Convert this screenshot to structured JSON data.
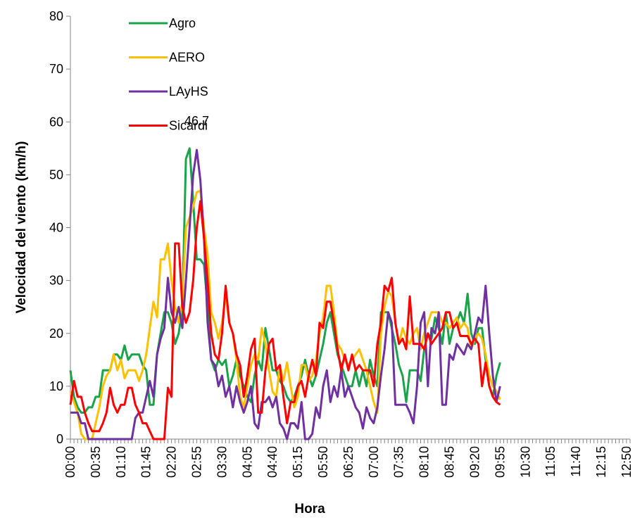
{
  "chart_data": {
    "type": "line",
    "x_label": "Hora",
    "y_label": "Velocidad del viento (km/h)",
    "ylim": [
      0,
      80
    ],
    "yticks": [
      0,
      10,
      20,
      30,
      40,
      50,
      60,
      70,
      80
    ],
    "legend": "top-left",
    "categories": [
      "00:00",
      null,
      null,
      null,
      null,
      null,
      null,
      "00:35",
      null,
      null,
      null,
      null,
      null,
      null,
      "01:10",
      null,
      null,
      null,
      null,
      null,
      null,
      "01:45",
      null,
      null,
      null,
      null,
      null,
      null,
      "02:20",
      null,
      null,
      null,
      null,
      null,
      null,
      "02:55",
      null,
      null,
      null,
      null,
      null,
      null,
      "03:30",
      null,
      null,
      null,
      null,
      null,
      null,
      "04:05",
      null,
      null,
      null,
      null,
      null,
      null,
      "04:40",
      null,
      null,
      null,
      null,
      null,
      null,
      "05:15",
      null,
      null,
      null,
      null,
      null,
      null,
      "05:50",
      null,
      null,
      null,
      null,
      null,
      null,
      "06:25",
      null,
      null,
      null,
      null,
      null,
      null,
      "07:00",
      null,
      null,
      null,
      null,
      null,
      null,
      "07:35",
      null,
      null,
      null,
      null,
      null,
      null,
      "08:10",
      null,
      null,
      null,
      null,
      null,
      null,
      "08:45",
      null,
      null,
      null,
      null,
      null,
      null,
      "09:20",
      null,
      null,
      null,
      null,
      null,
      null,
      "09:55",
      null,
      null,
      null,
      null,
      null,
      null,
      "10:30",
      null,
      null,
      null,
      null,
      null,
      null,
      "11:05",
      null,
      null,
      null,
      null,
      null,
      null,
      "11:40",
      null,
      null,
      null,
      null,
      null,
      null,
      "12:15",
      null,
      null,
      null,
      null,
      null,
      null,
      "12:50",
      null
    ],
    "series": [
      {
        "name": "Agro",
        "color": "#1aa34a",
        "values": [
          13,
          8,
          6,
          5,
          5,
          6,
          6,
          8,
          8,
          13,
          13,
          13,
          16,
          16,
          15,
          17.7,
          15,
          16,
          16,
          16,
          14,
          13,
          6.5,
          6.5,
          16,
          20,
          24,
          24,
          22,
          18,
          20,
          25,
          53,
          55,
          45,
          34,
          34,
          33,
          25,
          15,
          13,
          15,
          14,
          15,
          10,
          12,
          15,
          12,
          10,
          8,
          7,
          12,
          15,
          13,
          21,
          17,
          13,
          13,
          11,
          10,
          8,
          7,
          8,
          10,
          12,
          15,
          12,
          10,
          12,
          15,
          18,
          22,
          24,
          20,
          16,
          14,
          12,
          10,
          10,
          13,
          10,
          13,
          10,
          15,
          12,
          10,
          24,
          24,
          24,
          21,
          18,
          14,
          12,
          7,
          13,
          13,
          13,
          11,
          17,
          20,
          19,
          23,
          21,
          18,
          24,
          18,
          21,
          22,
          24,
          22,
          27.5,
          20,
          18,
          21,
          21,
          15,
          10,
          8,
          12,
          14.5,
          null,
          null,
          null,
          null,
          null,
          null,
          null,
          null,
          null,
          null,
          null,
          null,
          null,
          null,
          null,
          null,
          null,
          null,
          null,
          null,
          null,
          null,
          null,
          null,
          null,
          null,
          null,
          null,
          null,
          null,
          null,
          null,
          null,
          null,
          null,
          null
        ]
      },
      {
        "name": "AERO",
        "color": "#ffc000",
        "values": [
          9,
          7,
          5,
          1,
          0,
          0,
          0,
          3,
          6,
          10,
          12,
          13,
          16,
          13,
          15,
          11.5,
          13,
          13,
          13,
          11,
          13,
          16,
          21,
          26,
          23,
          34,
          34,
          37,
          30,
          25,
          22,
          26,
          40,
          42,
          44,
          46.7,
          47,
          40,
          35,
          24,
          22,
          19,
          22,
          27,
          22,
          20,
          15,
          8,
          6,
          10,
          14,
          16,
          15,
          21,
          18,
          13,
          9,
          8,
          14,
          11,
          14.5,
          10,
          6,
          8,
          14,
          14,
          11,
          12,
          15,
          20,
          23,
          29,
          29,
          24,
          18,
          17,
          15,
          14,
          15,
          16,
          17,
          15,
          13,
          10,
          7,
          5,
          20,
          25,
          28,
          27,
          22,
          18,
          21,
          19,
          18,
          20,
          21,
          17,
          20,
          22,
          24,
          24,
          24,
          22,
          22,
          21,
          22,
          23,
          21,
          22,
          21,
          17,
          19,
          20,
          19,
          16,
          12,
          10,
          9,
          7.5,
          null,
          null,
          null,
          null,
          null,
          null,
          null,
          null,
          null,
          null,
          null,
          null,
          null,
          null,
          null,
          null,
          null,
          null,
          null,
          null,
          null,
          null,
          null,
          null,
          null,
          null,
          null,
          null,
          null,
          null,
          null,
          null,
          null,
          null,
          null,
          null
        ]
      },
      {
        "name": "LAyHS",
        "color": "#7030a0",
        "values": [
          5,
          5,
          5,
          3,
          3,
          0,
          0,
          0,
          0,
          0,
          0,
          0,
          0,
          0,
          0,
          0,
          0,
          0,
          4,
          5,
          5,
          8,
          11,
          8,
          16,
          19,
          21,
          30.5,
          24,
          22,
          25,
          21,
          30,
          40,
          50,
          54.7,
          49,
          38,
          22,
          15,
          14,
          10,
          12,
          8,
          10,
          6,
          10,
          7,
          5,
          7,
          10,
          3,
          2,
          7,
          7,
          8,
          6,
          8,
          3,
          2,
          0,
          3,
          3,
          2,
          7,
          0,
          0,
          1,
          6,
          4,
          10,
          13,
          7,
          10,
          8,
          13,
          8,
          10,
          8,
          6,
          5,
          2,
          6,
          4,
          3,
          6,
          12,
          17,
          24,
          22,
          6.5,
          6.5,
          6.5,
          6.5,
          5,
          3,
          10,
          22,
          24,
          10,
          21,
          20,
          24,
          6.5,
          6.5,
          16,
          15,
          18,
          17,
          16,
          18,
          17,
          20,
          23,
          22,
          29,
          20,
          12,
          7,
          10,
          null,
          null,
          null,
          null,
          null,
          null,
          null,
          null,
          null,
          null,
          null,
          null,
          null,
          null,
          null,
          null,
          null,
          null,
          null,
          null,
          null,
          null,
          null,
          null,
          null,
          null,
          null,
          null,
          null,
          null,
          null,
          null,
          null,
          null,
          null,
          null
        ]
      },
      {
        "name": "Sicardi",
        "color": "#ff0000",
        "values": [
          6.5,
          11,
          8,
          8,
          5,
          3,
          1.5,
          1.5,
          1.5,
          3,
          5,
          9.7,
          6.5,
          5,
          6.5,
          6.5,
          9.7,
          9.7,
          6.5,
          5,
          3,
          3,
          1.5,
          0,
          0,
          0,
          0,
          9.7,
          8,
          37,
          37,
          25,
          22,
          24,
          30,
          40,
          45,
          38,
          30,
          20,
          16,
          15,
          20,
          29,
          22,
          20,
          16,
          14,
          8,
          12,
          17,
          19,
          5,
          5,
          13,
          18,
          19,
          13,
          14,
          8,
          3,
          7,
          7,
          10,
          11,
          8,
          12,
          15,
          12,
          22,
          21,
          26,
          26,
          22,
          17,
          13,
          16,
          13,
          16,
          13,
          14,
          13,
          13,
          13,
          10,
          18,
          22,
          29,
          28,
          30.5,
          22,
          18,
          19,
          17,
          27,
          18,
          18,
          18,
          17,
          20,
          18,
          19,
          20,
          21,
          24,
          24,
          21,
          22,
          19.5,
          19.5,
          19.5,
          18,
          19,
          18,
          10,
          14.5,
          10,
          8,
          7,
          6.5,
          null,
          null,
          null,
          null,
          null,
          null,
          null,
          null,
          null,
          null,
          null,
          null,
          null,
          null,
          null,
          null,
          null,
          null,
          null,
          null,
          null,
          null,
          null,
          null,
          null,
          null,
          null,
          null,
          null,
          null,
          null,
          null,
          null,
          null,
          null,
          null
        ]
      }
    ]
  }
}
